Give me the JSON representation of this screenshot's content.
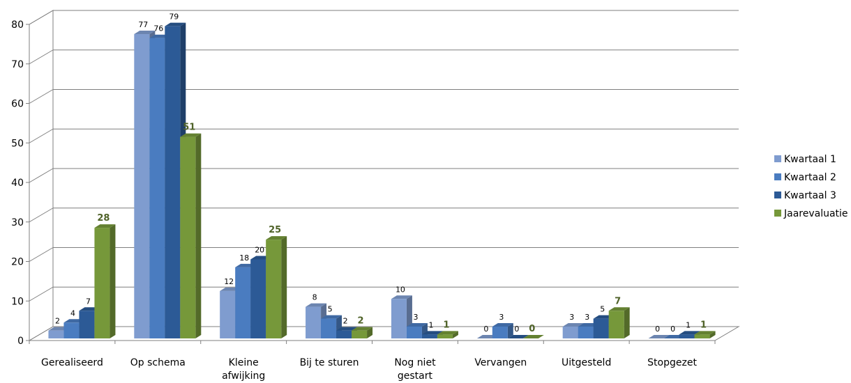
{
  "chart_data": {
    "type": "bar",
    "title": "",
    "xlabel": "",
    "ylabel": "",
    "ylim": [
      0,
      80
    ],
    "yticks": [
      0,
      10,
      20,
      30,
      40,
      50,
      60,
      70,
      80
    ],
    "grid": true,
    "legend_position": "right",
    "three_d": true,
    "categories": [
      [
        "Gerealiseerd"
      ],
      [
        "Op schema"
      ],
      [
        "Kleine",
        "afwijking"
      ],
      [
        "Bij te sturen"
      ],
      [
        "Nog niet",
        "gestart"
      ],
      [
        "Vervangen"
      ],
      [
        "Uitgesteld"
      ],
      [
        "Stopgezet"
      ]
    ],
    "series": [
      {
        "name": "Kwartaal 1",
        "color": "#7f9ccf",
        "values": [
          2,
          77,
          12,
          8,
          10,
          0,
          3,
          0
        ]
      },
      {
        "name": "Kwartaal 2",
        "color": "#4a7cc0",
        "values": [
          4,
          76,
          18,
          5,
          3,
          3,
          3,
          0
        ]
      },
      {
        "name": "Kwartaal 3",
        "color": "#2c5a96",
        "values": [
          7,
          79,
          20,
          2,
          1,
          0,
          5,
          1
        ]
      },
      {
        "name": "Jaarevaluatie",
        "color": "#76983a",
        "values": [
          28,
          51,
          25,
          2,
          1,
          0,
          7,
          1
        ]
      }
    ]
  }
}
